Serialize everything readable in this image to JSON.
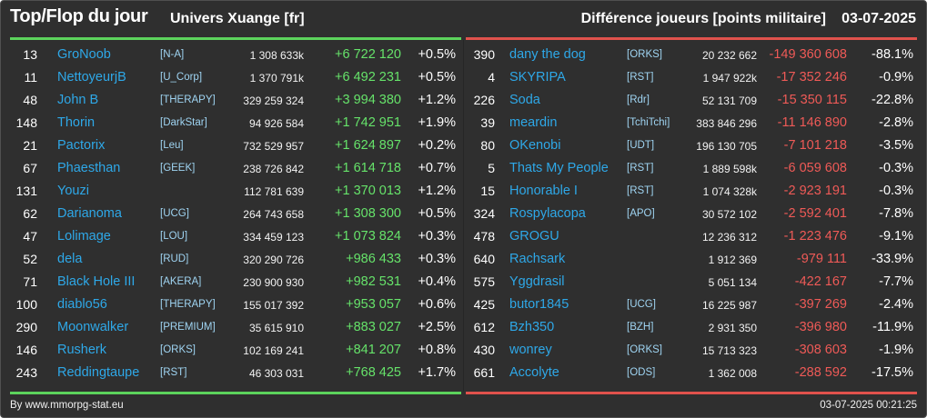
{
  "header": {
    "title": "Top/Flop du jour",
    "universe": "Univers Xuange [fr]",
    "subject": "Différence joueurs [points militaire]",
    "date": "03-07-2025"
  },
  "top": [
    {
      "rank": "13",
      "name": "GroNoob",
      "ally": "[N-A]",
      "points": "1 308 633k",
      "diff": "+6 722 120",
      "pct": "+0.5%"
    },
    {
      "rank": "11",
      "name": "NettoyeurjB",
      "ally": "[U_Corp]",
      "points": "1 370 791k",
      "diff": "+6 492 231",
      "pct": "+0.5%"
    },
    {
      "rank": "48",
      "name": "John B",
      "ally": "[THERAPY]",
      "points": "329 259 324",
      "diff": "+3 994 380",
      "pct": "+1.2%"
    },
    {
      "rank": "148",
      "name": "Thorin",
      "ally": "[DarkStar]",
      "points": "94 926 584",
      "diff": "+1 742 951",
      "pct": "+1.9%"
    },
    {
      "rank": "21",
      "name": "Pactorix",
      "ally": "[Leu]",
      "points": "732 529 957",
      "diff": "+1 624 897",
      "pct": "+0.2%"
    },
    {
      "rank": "67",
      "name": "Phaesthan",
      "ally": "[GEEK]",
      "points": "238 726 842",
      "diff": "+1 614 718",
      "pct": "+0.7%"
    },
    {
      "rank": "131",
      "name": "Youzi",
      "ally": "",
      "points": "112 781 639",
      "diff": "+1 370 013",
      "pct": "+1.2%"
    },
    {
      "rank": "62",
      "name": "Darianoma",
      "ally": "[UCG]",
      "points": "264 743 658",
      "diff": "+1 308 300",
      "pct": "+0.5%"
    },
    {
      "rank": "47",
      "name": "Lolimage",
      "ally": "[LOU]",
      "points": "334 459 123",
      "diff": "+1 073 824",
      "pct": "+0.3%"
    },
    {
      "rank": "52",
      "name": "dela",
      "ally": "[RUD]",
      "points": "320 290 726",
      "diff": "+986 433",
      "pct": "+0.3%"
    },
    {
      "rank": "71",
      "name": "Black Hole III",
      "ally": "[AKERA]",
      "points": "230 900 930",
      "diff": "+982 531",
      "pct": "+0.4%"
    },
    {
      "rank": "100",
      "name": "diablo56",
      "ally": "[THERAPY]",
      "points": "155 017 392",
      "diff": "+953 057",
      "pct": "+0.6%"
    },
    {
      "rank": "290",
      "name": "Moonwalker",
      "ally": "[PREMIUM]",
      "points": "35 615 910",
      "diff": "+883 027",
      "pct": "+2.5%"
    },
    {
      "rank": "146",
      "name": "Rusherk",
      "ally": "[ORKS]",
      "points": "102 169 241",
      "diff": "+841 207",
      "pct": "+0.8%"
    },
    {
      "rank": "243",
      "name": "Reddingtaupe",
      "ally": "[RST]",
      "points": "46 303 031",
      "diff": "+768 425",
      "pct": "+1.7%"
    }
  ],
  "flop": [
    {
      "rank": "390",
      "name": "dany the dog",
      "ally": "[ORKS]",
      "points": "20 232 662",
      "diff": "-149 360 608",
      "pct": "-88.1%"
    },
    {
      "rank": "4",
      "name": "SKYRIPA",
      "ally": "[RST]",
      "points": "1 947 922k",
      "diff": "-17 352 246",
      "pct": "-0.9%"
    },
    {
      "rank": "226",
      "name": "Soda",
      "ally": "[Rdr]",
      "points": "52 131 709",
      "diff": "-15 350 115",
      "pct": "-22.8%"
    },
    {
      "rank": "39",
      "name": "meardin",
      "ally": "[TchiTchi]",
      "points": "383 846 296",
      "diff": "-11 146 890",
      "pct": "-2.8%"
    },
    {
      "rank": "80",
      "name": "OKenobi",
      "ally": "[UDT]",
      "points": "196 130 705",
      "diff": "-7 101 218",
      "pct": "-3.5%"
    },
    {
      "rank": "5",
      "name": "Thats My People",
      "ally": "[RST]",
      "points": "1 889 598k",
      "diff": "-6 059 608",
      "pct": "-0.3%"
    },
    {
      "rank": "15",
      "name": "Honorable I",
      "ally": "[RST]",
      "points": "1 074 328k",
      "diff": "-2 923 191",
      "pct": "-0.3%"
    },
    {
      "rank": "324",
      "name": "Rospylacopa",
      "ally": "[APO]",
      "points": "30 572 102",
      "diff": "-2 592 401",
      "pct": "-7.8%"
    },
    {
      "rank": "478",
      "name": "GROGU",
      "ally": "",
      "points": "12 236 312",
      "diff": "-1 223 476",
      "pct": "-9.1%"
    },
    {
      "rank": "640",
      "name": "Rachsark",
      "ally": "",
      "points": "1 912 369",
      "diff": "-979 111",
      "pct": "-33.9%"
    },
    {
      "rank": "575",
      "name": "Yggdrasil",
      "ally": "",
      "points": "5 051 134",
      "diff": "-422 167",
      "pct": "-7.7%"
    },
    {
      "rank": "425",
      "name": "butor1845",
      "ally": "[UCG]",
      "points": "16 225 987",
      "diff": "-397 269",
      "pct": "-2.4%"
    },
    {
      "rank": "612",
      "name": "Bzh350",
      "ally": "[BZH]",
      "points": "2 931 350",
      "diff": "-396 980",
      "pct": "-11.9%"
    },
    {
      "rank": "430",
      "name": "wonrey",
      "ally": "[ORKS]",
      "points": "15 713 323",
      "diff": "-308 603",
      "pct": "-1.9%"
    },
    {
      "rank": "661",
      "name": "Accolyte",
      "ally": "[ODS]",
      "points": "1 362 008",
      "diff": "-288 592",
      "pct": "-17.5%"
    }
  ],
  "footer": {
    "credit": "By www.mmorpg-stat.eu",
    "timestamp": "03-07-2025 00:21:25"
  },
  "colors": {
    "background": "#2f2f2f",
    "gain": "#66e36a",
    "loss": "#ef5a57",
    "player_name": "#2ea8e8",
    "alliance_tag": "#9fd4f2",
    "top_rule": "#5cd35c",
    "flop_rule": "#e0524c"
  }
}
